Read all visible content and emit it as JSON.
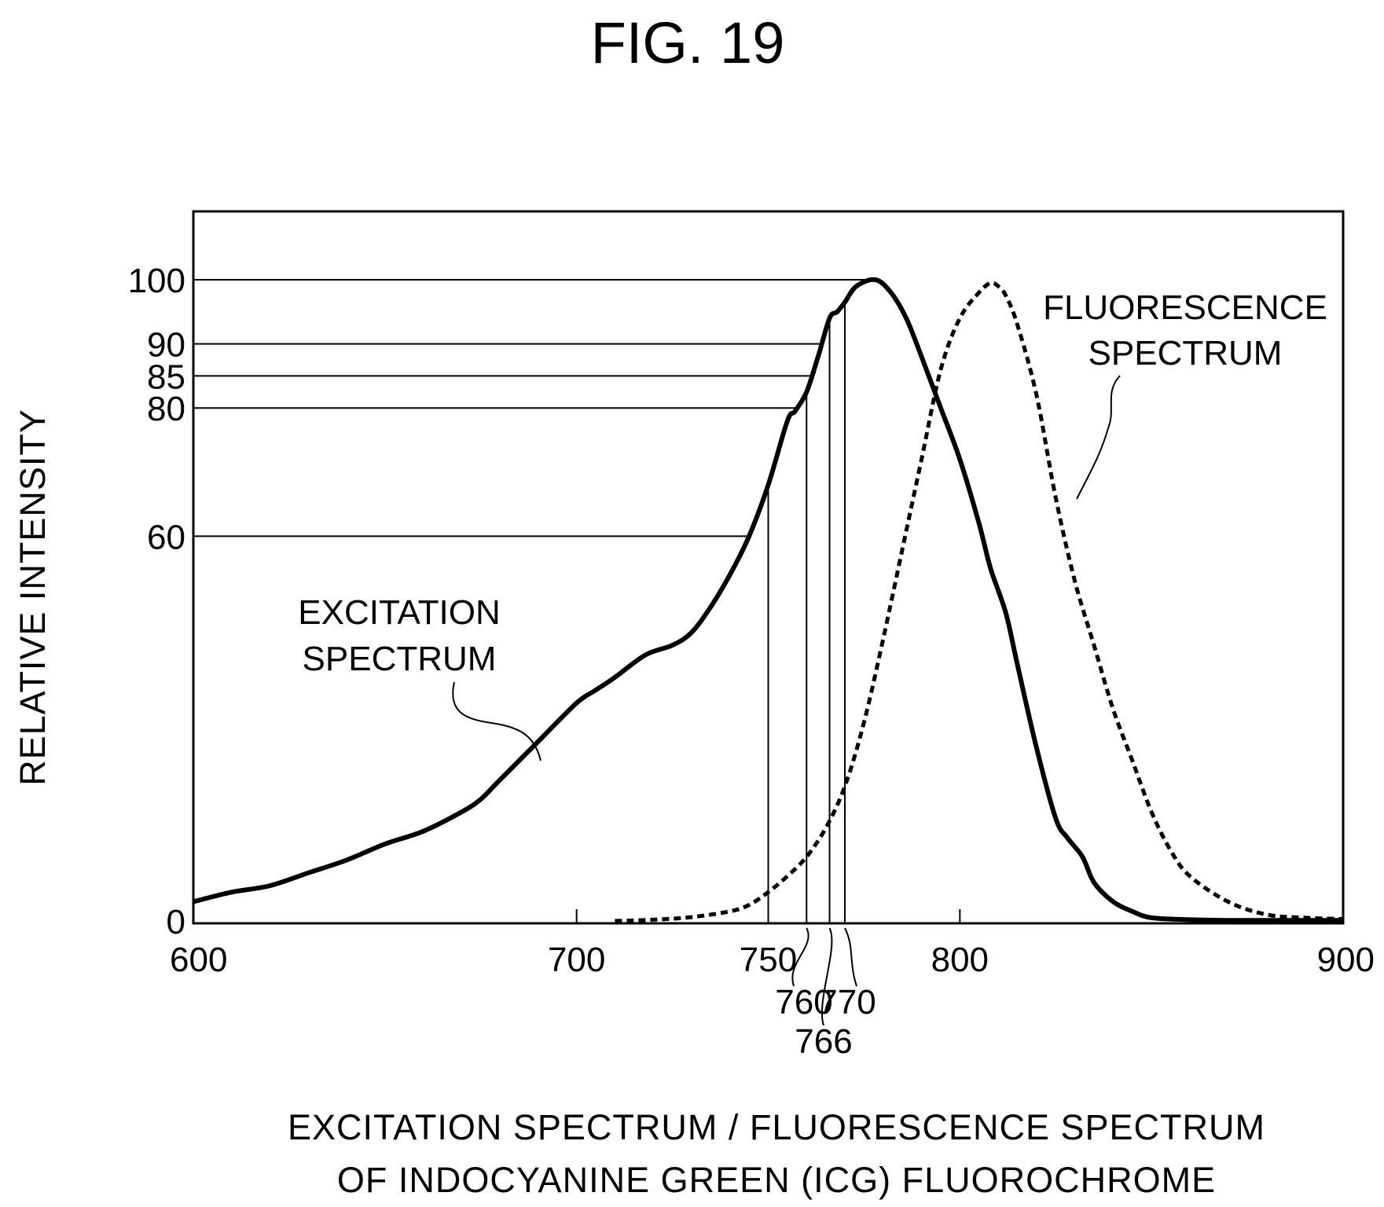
{
  "figure": {
    "label": "FIG. 19"
  },
  "chart_data": {
    "type": "line",
    "title": "EXCITATION SPECTRUM / FLUORESCENCE SPECTRUM OF INDOCYANINE GREEN (ICG) FLUOROCHROME",
    "title_lines": [
      "EXCITATION SPECTRUM / FLUORESCENCE SPECTRUM",
      "OF INDOCYANINE GREEN (ICG) FLUOROCHROME"
    ],
    "xlabel": "",
    "ylabel": "RELATIVE INTENSITY",
    "xlim": [
      600,
      900
    ],
    "ylim": [
      0,
      112
    ],
    "x_ticks": [
      600,
      700,
      750,
      800,
      900
    ],
    "y_ticks": [
      0,
      60,
      80,
      85,
      90,
      100
    ],
    "grid": false,
    "reference_lines": {
      "horizontal": [
        100,
        90,
        85,
        80,
        60
      ],
      "vertical": [
        750,
        760,
        766,
        770
      ]
    },
    "marker_annotations": [
      {
        "label": "760",
        "x": 760
      },
      {
        "label": "766",
        "x": 766
      },
      {
        "label": "770",
        "x": 770
      }
    ],
    "series": [
      {
        "name": "EXCITATION SPECTRUM",
        "label_lines": [
          "EXCITATION",
          "SPECTRUM"
        ],
        "style": "solid",
        "color": "#000000",
        "x": [
          600,
          610,
          620,
          630,
          640,
          650,
          660,
          670,
          675,
          680,
          690,
          700,
          705,
          710,
          718,
          725,
          730,
          735,
          740,
          745,
          750,
          755,
          757,
          760,
          763,
          766,
          768,
          770,
          773,
          778,
          782,
          786,
          790,
          795,
          800,
          805,
          808,
          812,
          815,
          820,
          825,
          828,
          832,
          835,
          840,
          845,
          850,
          860,
          870,
          880,
          890,
          900
        ],
        "y": [
          3,
          4.5,
          5.5,
          7.5,
          9.5,
          12,
          14,
          17,
          19,
          22,
          28,
          34,
          36,
          38,
          41.5,
          43,
          45,
          49,
          54,
          60,
          68,
          78,
          79.5,
          82.5,
          88,
          94,
          95,
          96.5,
          99,
          100,
          98,
          94,
          88,
          80,
          72,
          62,
          55,
          48,
          40,
          27,
          16,
          13,
          10,
          6,
          3,
          1.5,
          0.5,
          0.2,
          0.1,
          0.1,
          0.1,
          0.1
        ]
      },
      {
        "name": "FLUORESCENCE SPECTRUM",
        "label_lines": [
          "FLUORESCENCE",
          "SPECTRUM"
        ],
        "style": "dashed",
        "color": "#000000",
        "x": [
          710,
          720,
          730,
          740,
          745,
          750,
          755,
          760,
          765,
          770,
          775,
          780,
          785,
          790,
          795,
          800,
          805,
          808,
          810,
          812,
          815,
          820,
          825,
          830,
          835,
          840,
          845,
          850,
          855,
          860,
          870,
          880,
          890,
          900
        ],
        "y": [
          0,
          0.2,
          0.6,
          1.5,
          2.5,
          4.5,
          7,
          10,
          14.5,
          21,
          31,
          44,
          58,
          72,
          86,
          94,
          98,
          99.5,
          99,
          97.5,
          93,
          82,
          66,
          53,
          43,
          33,
          25,
          17,
          11,
          7,
          3,
          1,
          0.5,
          0.3
        ]
      }
    ]
  }
}
